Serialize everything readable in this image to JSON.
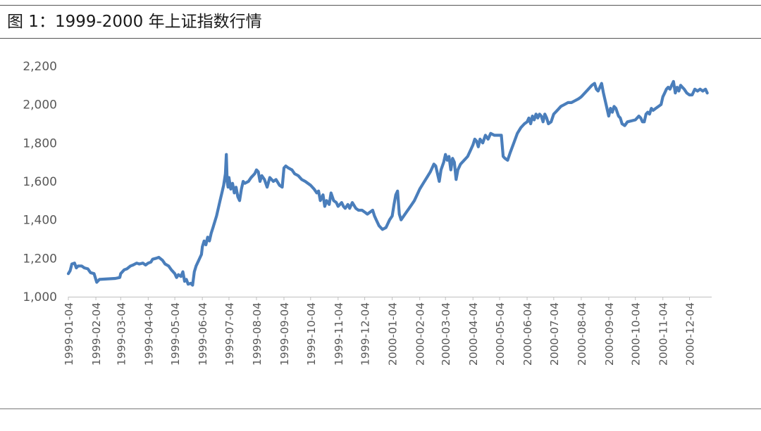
{
  "title": "图 1：1999-2000 年上证指数行情",
  "colors": {
    "series": "#4a7ebb",
    "axis": "#bfbfbf",
    "tick_text": "#595959"
  },
  "chart_data": {
    "type": "line",
    "title": "图 1：1999-2000 年上证指数行情",
    "xlabel": "",
    "ylabel": "",
    "ylim": [
      1000,
      2200
    ],
    "y_ticks": [
      1000,
      1200,
      1400,
      1600,
      1800,
      2000,
      2200
    ],
    "y_tick_labels": [
      "1,000",
      "1,200",
      "1,400",
      "1,600",
      "1,800",
      "2,000",
      "2,200"
    ],
    "x_range": [
      "1999-01-04",
      "2000-12-29"
    ],
    "x_ticks": [
      "1999-01-04",
      "1999-02-04",
      "1999-03-04",
      "1999-04-04",
      "1999-05-04",
      "1999-06-04",
      "1999-07-04",
      "1999-08-04",
      "1999-09-04",
      "1999-10-04",
      "1999-11-04",
      "1999-12-04",
      "2000-01-04",
      "2000-02-04",
      "2000-03-04",
      "2000-04-04",
      "2000-05-04",
      "2000-06-04",
      "2000-07-04",
      "2000-08-04",
      "2000-09-04",
      "2000-10-04",
      "2000-11-04",
      "2000-12-04"
    ],
    "grid": false,
    "legend": "none",
    "series": [
      {
        "color": "#4a7ebb",
        "points": [
          [
            "1999-01-04",
            1120
          ],
          [
            "1999-01-06",
            1135
          ],
          [
            "1999-01-08",
            1170
          ],
          [
            "1999-01-11",
            1175
          ],
          [
            "1999-01-13",
            1150
          ],
          [
            "1999-01-15",
            1160
          ],
          [
            "1999-01-19",
            1160
          ],
          [
            "1999-01-22",
            1150
          ],
          [
            "1999-01-26",
            1145
          ],
          [
            "1999-01-29",
            1125
          ],
          [
            "1999-02-02",
            1120
          ],
          [
            "1999-02-04",
            1090
          ],
          [
            "1999-02-05",
            1075
          ],
          [
            "1999-02-08",
            1090
          ],
          [
            "1999-02-26",
            1095
          ],
          [
            "1999-03-03",
            1100
          ],
          [
            "1999-03-04",
            1120
          ],
          [
            "1999-03-08",
            1140
          ],
          [
            "1999-03-11",
            1145
          ],
          [
            "1999-03-15",
            1160
          ],
          [
            "1999-03-18",
            1165
          ],
          [
            "1999-03-22",
            1175
          ],
          [
            "1999-03-25",
            1170
          ],
          [
            "1999-03-29",
            1175
          ],
          [
            "1999-04-01",
            1165
          ],
          [
            "1999-04-04",
            1175
          ],
          [
            "1999-04-07",
            1180
          ],
          [
            "1999-04-09",
            1195
          ],
          [
            "1999-04-13",
            1200
          ],
          [
            "1999-04-16",
            1205
          ],
          [
            "1999-04-20",
            1190
          ],
          [
            "1999-04-23",
            1170
          ],
          [
            "1999-04-27",
            1160
          ],
          [
            "1999-04-30",
            1140
          ],
          [
            "1999-05-04",
            1120
          ],
          [
            "1999-05-06",
            1100
          ],
          [
            "1999-05-08",
            1115
          ],
          [
            "1999-05-11",
            1105
          ],
          [
            "1999-05-13",
            1130
          ],
          [
            "1999-05-15",
            1080
          ],
          [
            "1999-05-17",
            1090
          ],
          [
            "1999-05-19",
            1065
          ],
          [
            "1999-05-22",
            1070
          ],
          [
            "1999-05-24",
            1060
          ],
          [
            "1999-05-26",
            1130
          ],
          [
            "1999-05-28",
            1160
          ],
          [
            "1999-05-31",
            1190
          ],
          [
            "1999-06-03",
            1220
          ],
          [
            "1999-06-04",
            1260
          ],
          [
            "1999-06-06",
            1290
          ],
          [
            "1999-06-08",
            1270
          ],
          [
            "1999-06-10",
            1310
          ],
          [
            "1999-06-12",
            1290
          ],
          [
            "1999-06-14",
            1330
          ],
          [
            "1999-06-16",
            1360
          ],
          [
            "1999-06-18",
            1390
          ],
          [
            "1999-06-20",
            1420
          ],
          [
            "1999-06-22",
            1460
          ],
          [
            "1999-06-24",
            1500
          ],
          [
            "1999-06-26",
            1540
          ],
          [
            "1999-06-28",
            1580
          ],
          [
            "1999-06-30",
            1640
          ],
          [
            "1999-07-01",
            1740
          ],
          [
            "1999-07-02",
            1600
          ],
          [
            "1999-07-03",
            1570
          ],
          [
            "1999-07-04",
            1620
          ],
          [
            "1999-07-06",
            1560
          ],
          [
            "1999-07-08",
            1590
          ],
          [
            "1999-07-10",
            1540
          ],
          [
            "1999-07-12",
            1570
          ],
          [
            "1999-07-14",
            1520
          ],
          [
            "1999-07-16",
            1500
          ],
          [
            "1999-07-18",
            1560
          ],
          [
            "1999-07-20",
            1600
          ],
          [
            "1999-07-22",
            1590
          ],
          [
            "1999-07-26",
            1600
          ],
          [
            "1999-07-29",
            1620
          ],
          [
            "1999-08-02",
            1640
          ],
          [
            "1999-08-04",
            1660
          ],
          [
            "1999-08-06",
            1650
          ],
          [
            "1999-08-08",
            1600
          ],
          [
            "1999-08-10",
            1630
          ],
          [
            "1999-08-13",
            1610
          ],
          [
            "1999-08-16",
            1570
          ],
          [
            "1999-08-19",
            1620
          ],
          [
            "1999-08-23",
            1600
          ],
          [
            "1999-08-26",
            1610
          ],
          [
            "1999-08-30",
            1580
          ],
          [
            "1999-09-02",
            1570
          ],
          [
            "1999-09-04",
            1670
          ],
          [
            "1999-09-06",
            1680
          ],
          [
            "1999-09-09",
            1670
          ],
          [
            "1999-09-13",
            1660
          ],
          [
            "1999-09-16",
            1640
          ],
          [
            "1999-09-20",
            1630
          ],
          [
            "1999-09-24",
            1610
          ],
          [
            "1999-09-28",
            1600
          ],
          [
            "1999-10-04",
            1580
          ],
          [
            "1999-10-08",
            1560
          ],
          [
            "1999-10-11",
            1540
          ],
          [
            "1999-10-13",
            1550
          ],
          [
            "1999-10-15",
            1500
          ],
          [
            "1999-10-18",
            1530
          ],
          [
            "1999-10-20",
            1470
          ],
          [
            "1999-10-22",
            1500
          ],
          [
            "1999-10-25",
            1480
          ],
          [
            "1999-10-27",
            1540
          ],
          [
            "1999-10-30",
            1500
          ],
          [
            "1999-11-02",
            1490
          ],
          [
            "1999-11-04",
            1470
          ],
          [
            "1999-11-08",
            1490
          ],
          [
            "1999-11-10",
            1470
          ],
          [
            "1999-11-12",
            1460
          ],
          [
            "1999-11-15",
            1480
          ],
          [
            "1999-11-17",
            1460
          ],
          [
            "1999-11-20",
            1490
          ],
          [
            "1999-11-24",
            1460
          ],
          [
            "1999-11-27",
            1450
          ],
          [
            "1999-12-01",
            1450
          ],
          [
            "1999-12-04",
            1440
          ],
          [
            "1999-12-07",
            1430
          ],
          [
            "1999-12-10",
            1440
          ],
          [
            "1999-12-13",
            1450
          ],
          [
            "1999-12-15",
            1420
          ],
          [
            "1999-12-17",
            1400
          ],
          [
            "1999-12-20",
            1370
          ],
          [
            "1999-12-24",
            1350
          ],
          [
            "1999-12-28",
            1360
          ],
          [
            "2000-01-01",
            1400
          ],
          [
            "2000-01-04",
            1420
          ],
          [
            "2000-01-06",
            1480
          ],
          [
            "2000-01-08",
            1530
          ],
          [
            "2000-01-10",
            1550
          ],
          [
            "2000-01-12",
            1430
          ],
          [
            "2000-01-14",
            1400
          ],
          [
            "2000-01-17",
            1420
          ],
          [
            "2000-01-20",
            1440
          ],
          [
            "2000-01-23",
            1460
          ],
          [
            "2000-01-26",
            1480
          ],
          [
            "2000-01-29",
            1500
          ],
          [
            "2000-02-01",
            1530
          ],
          [
            "2000-02-04",
            1560
          ],
          [
            "2000-02-08",
            1590
          ],
          [
            "2000-02-12",
            1620
          ],
          [
            "2000-02-16",
            1650
          ],
          [
            "2000-02-20",
            1690
          ],
          [
            "2000-02-22",
            1680
          ],
          [
            "2000-02-24",
            1640
          ],
          [
            "2000-02-26",
            1600
          ],
          [
            "2000-02-28",
            1660
          ],
          [
            "2000-03-02",
            1700
          ],
          [
            "2000-03-04",
            1740
          ],
          [
            "2000-03-06",
            1710
          ],
          [
            "2000-03-08",
            1730
          ],
          [
            "2000-03-10",
            1660
          ],
          [
            "2000-03-12",
            1720
          ],
          [
            "2000-03-14",
            1700
          ],
          [
            "2000-03-16",
            1610
          ],
          [
            "2000-03-18",
            1660
          ],
          [
            "2000-03-21",
            1690
          ],
          [
            "2000-03-25",
            1710
          ],
          [
            "2000-03-29",
            1730
          ],
          [
            "2000-04-01",
            1760
          ],
          [
            "2000-04-04",
            1790
          ],
          [
            "2000-04-06",
            1820
          ],
          [
            "2000-04-08",
            1810
          ],
          [
            "2000-04-10",
            1780
          ],
          [
            "2000-04-12",
            1820
          ],
          [
            "2000-04-15",
            1800
          ],
          [
            "2000-04-18",
            1840
          ],
          [
            "2000-04-21",
            1820
          ],
          [
            "2000-04-24",
            1850
          ],
          [
            "2000-04-28",
            1840
          ],
          [
            "2000-05-04",
            1840
          ],
          [
            "2000-05-06",
            1840
          ],
          [
            "2000-05-08",
            1730
          ],
          [
            "2000-05-10",
            1720
          ],
          [
            "2000-05-13",
            1710
          ],
          [
            "2000-05-16",
            1750
          ],
          [
            "2000-05-20",
            1800
          ],
          [
            "2000-05-24",
            1850
          ],
          [
            "2000-05-28",
            1880
          ],
          [
            "2000-06-01",
            1900
          ],
          [
            "2000-06-04",
            1910
          ],
          [
            "2000-06-06",
            1930
          ],
          [
            "2000-06-08",
            1900
          ],
          [
            "2000-06-10",
            1940
          ],
          [
            "2000-06-12",
            1920
          ],
          [
            "2000-06-14",
            1950
          ],
          [
            "2000-06-16",
            1930
          ],
          [
            "2000-06-18",
            1950
          ],
          [
            "2000-06-20",
            1940
          ],
          [
            "2000-06-22",
            1910
          ],
          [
            "2000-06-24",
            1950
          ],
          [
            "2000-06-26",
            1930
          ],
          [
            "2000-06-28",
            1900
          ],
          [
            "2000-07-01",
            1910
          ],
          [
            "2000-07-04",
            1950
          ],
          [
            "2000-07-08",
            1970
          ],
          [
            "2000-07-12",
            1990
          ],
          [
            "2000-07-16",
            2000
          ],
          [
            "2000-07-20",
            2010
          ],
          [
            "2000-07-24",
            2010
          ],
          [
            "2000-07-28",
            2020
          ],
          [
            "2000-08-01",
            2030
          ],
          [
            "2000-08-04",
            2040
          ],
          [
            "2000-08-08",
            2060
          ],
          [
            "2000-08-12",
            2080
          ],
          [
            "2000-08-16",
            2100
          ],
          [
            "2000-08-19",
            2110
          ],
          [
            "2000-08-21",
            2080
          ],
          [
            "2000-08-23",
            2070
          ],
          [
            "2000-08-25",
            2090
          ],
          [
            "2000-08-27",
            2110
          ],
          [
            "2000-08-29",
            2060
          ],
          [
            "2000-08-31",
            2020
          ],
          [
            "2000-09-02",
            1980
          ],
          [
            "2000-09-04",
            1940
          ],
          [
            "2000-09-06",
            1980
          ],
          [
            "2000-09-08",
            1960
          ],
          [
            "2000-09-10",
            1990
          ],
          [
            "2000-09-12",
            1980
          ],
          [
            "2000-09-15",
            1940
          ],
          [
            "2000-09-17",
            1930
          ],
          [
            "2000-09-19",
            1900
          ],
          [
            "2000-09-22",
            1890
          ],
          [
            "2000-09-25",
            1910
          ],
          [
            "2000-10-04",
            1920
          ],
          [
            "2000-10-06",
            1930
          ],
          [
            "2000-10-08",
            1940
          ],
          [
            "2000-10-10",
            1930
          ],
          [
            "2000-10-12",
            1910
          ],
          [
            "2000-10-14",
            1910
          ],
          [
            "2000-10-16",
            1950
          ],
          [
            "2000-10-18",
            1960
          ],
          [
            "2000-10-20",
            1950
          ],
          [
            "2000-10-22",
            1980
          ],
          [
            "2000-10-24",
            1970
          ],
          [
            "2000-10-27",
            1980
          ],
          [
            "2000-10-30",
            1990
          ],
          [
            "2000-11-02",
            2000
          ],
          [
            "2000-11-04",
            2040
          ],
          [
            "2000-11-06",
            2060
          ],
          [
            "2000-11-08",
            2080
          ],
          [
            "2000-11-10",
            2090
          ],
          [
            "2000-11-12",
            2080
          ],
          [
            "2000-11-14",
            2100
          ],
          [
            "2000-11-16",
            2120
          ],
          [
            "2000-11-18",
            2060
          ],
          [
            "2000-11-20",
            2090
          ],
          [
            "2000-11-22",
            2070
          ],
          [
            "2000-11-24",
            2100
          ],
          [
            "2000-11-26",
            2090
          ],
          [
            "2000-11-28",
            2080
          ],
          [
            "2000-12-01",
            2060
          ],
          [
            "2000-12-04",
            2050
          ],
          [
            "2000-12-07",
            2050
          ],
          [
            "2000-12-10",
            2080
          ],
          [
            "2000-12-13",
            2070
          ],
          [
            "2000-12-16",
            2080
          ],
          [
            "2000-12-19",
            2070
          ],
          [
            "2000-12-22",
            2080
          ],
          [
            "2000-12-24",
            2060
          ]
        ]
      }
    ]
  }
}
